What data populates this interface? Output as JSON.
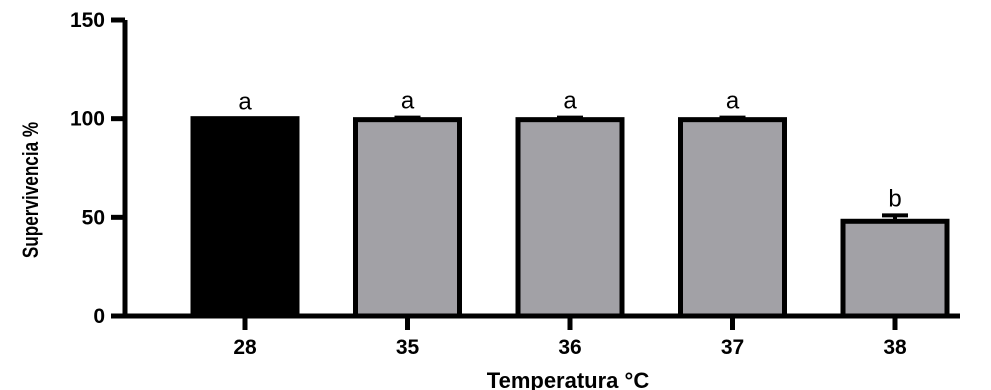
{
  "chart_data": {
    "type": "bar",
    "title": "",
    "xlabel": "Temperatura °C",
    "ylabel": "Supervivencia %",
    "ylim": [
      0,
      150
    ],
    "yticks": [
      0,
      50,
      100,
      150
    ],
    "categories": [
      "28",
      "35",
      "36",
      "37",
      "38"
    ],
    "values": [
      100,
      99.5,
      99.5,
      99.5,
      48
    ],
    "errors": [
      0,
      1,
      1,
      1,
      3
    ],
    "annotations": [
      "a",
      "a",
      "a",
      "a",
      "b"
    ],
    "bar_colors": [
      "#000000",
      "#a2a1a6",
      "#a2a1a6",
      "#a2a1a6",
      "#a2a1a6"
    ],
    "grid": false
  }
}
